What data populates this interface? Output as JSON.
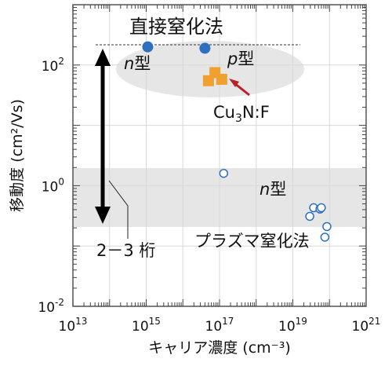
{
  "chart_data": {
    "type": "scatter",
    "title": "",
    "xlabel": "キャリア濃度 (cm⁻³)",
    "ylabel": "移動度 (cm²/Vs)",
    "xscale": "log",
    "yscale": "log",
    "xlim": [
      10000000000000.0,
      1e+21
    ],
    "ylim": [
      0.01,
      1000
    ],
    "x_ticks": [
      {
        "value": 10000000000000.0,
        "base": "10",
        "exp": "13"
      },
      {
        "value": 1000000000000000.0,
        "base": "10",
        "exp": "15"
      },
      {
        "value": 1e+17,
        "base": "10",
        "exp": "17"
      },
      {
        "value": 1e+19,
        "base": "10",
        "exp": "19"
      },
      {
        "value": 1e+21,
        "base": "10",
        "exp": "21"
      }
    ],
    "y_ticks": [
      {
        "value": 0.01,
        "base": "10",
        "exp": "-2"
      },
      {
        "value": 1,
        "base": "10",
        "exp": "0"
      },
      {
        "value": 100,
        "base": "10",
        "exp": "2"
      }
    ],
    "grid": true,
    "series": [
      {
        "color": "#2e6fc0",
        "marker": "filled-circle",
        "points": [
          {
            "x": 1100000000000000.0,
            "y": 200
          },
          {
            "x": 4e+16,
            "y": 190
          }
        ]
      },
      {
        "color": "#f0a02e",
        "marker": "filled-square",
        "points": [
          {
            "x": 5e+16,
            "y": 55
          },
          {
            "x": 7.5e+16,
            "y": 75
          },
          {
            "x": 1.15e+17,
            "y": 58
          }
        ]
      },
      {
        "color": "#2e6fc0",
        "marker": "open-circle",
        "points": [
          {
            "x": 1.3e+17,
            "y": 1.6
          },
          {
            "x": 2.9e+19,
            "y": 0.31
          },
          {
            "x": 3.7e+19,
            "y": 0.43
          },
          {
            "x": 5.5e+19,
            "y": 0.41
          },
          {
            "x": 6e+19,
            "y": 0.43
          },
          {
            "x": 7.5e+19,
            "y": 0.14
          },
          {
            "x": 8.5e+19,
            "y": 0.21
          }
        ]
      }
    ],
    "annotations": {
      "direct_method": "直接窒化法",
      "plasma_method": "プラズマ窒化法",
      "n_type_label_top": {
        "italic": "n",
        "rest": "型"
      },
      "p_type_label": {
        "italic": "p",
        "rest": "型"
      },
      "n_type_label_bottom": {
        "italic": "n",
        "rest": "型"
      },
      "cu3nf": {
        "main": "Cu",
        "sub": "3",
        "rest": "N:F"
      },
      "gap_label": "2－3 桁"
    },
    "colors": {
      "n_type": "#2e6fc0",
      "p_type": "#f0a02e",
      "cu3nf": "#b8202a",
      "region_fill": "#e6e6e6",
      "arrow": "#000000"
    }
  }
}
